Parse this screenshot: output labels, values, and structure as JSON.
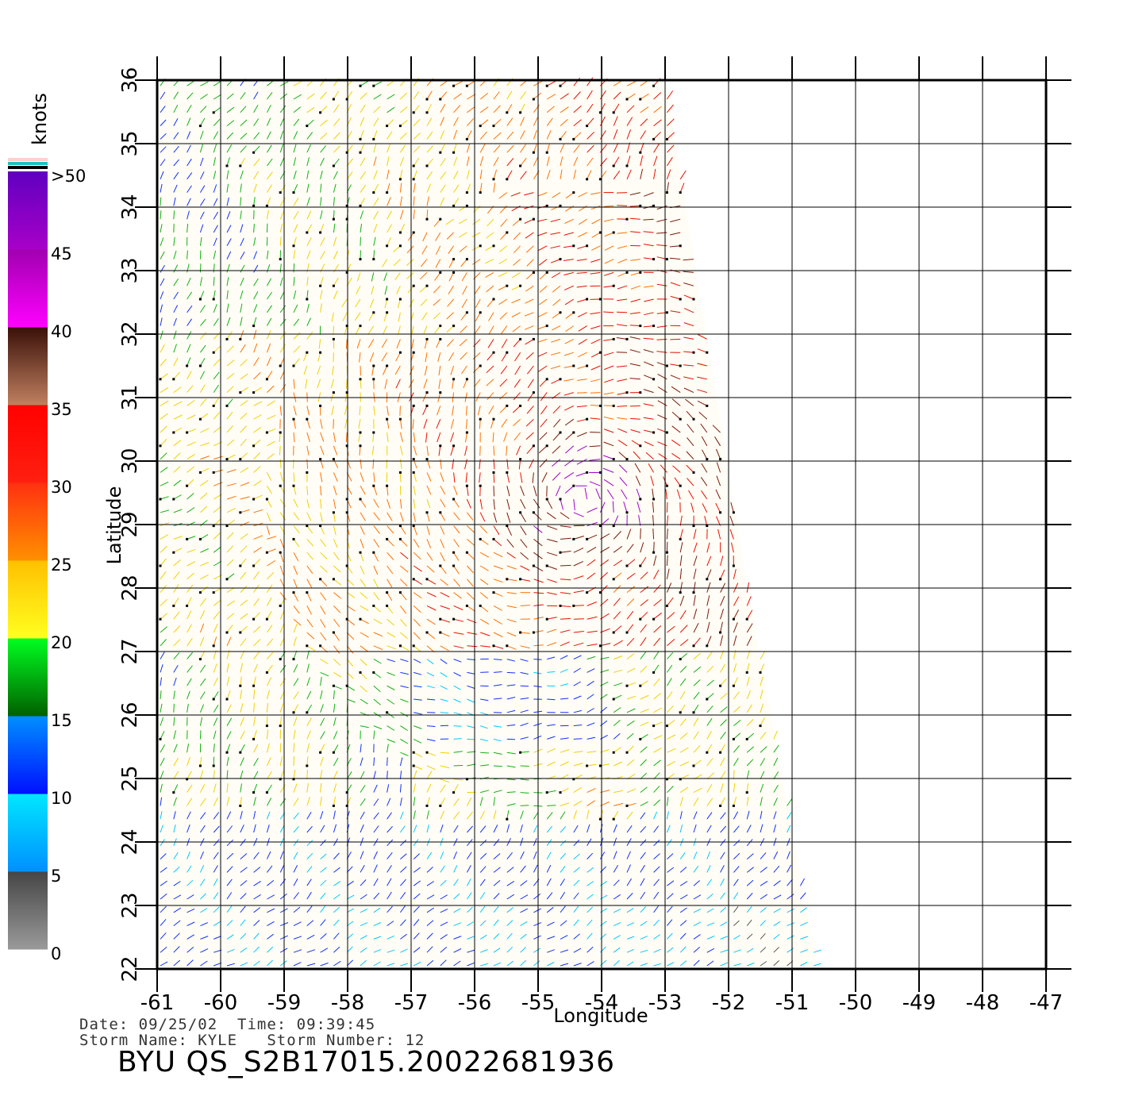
{
  "colorbar": {
    "unit_label": "knots",
    "labels": [
      ">50",
      "45",
      "40",
      "35",
      "30",
      "25",
      "20",
      "15",
      "10",
      "5",
      "0"
    ],
    "bands": [
      {
        "from": 0,
        "to": 5,
        "top": "#454545",
        "bottom": "#9a9a9a"
      },
      {
        "from": 5,
        "to": 10,
        "top": "#00e8ff",
        "bottom": "#0090ff"
      },
      {
        "from": 10,
        "to": 15,
        "top": "#0090ff",
        "bottom": "#0010ff"
      },
      {
        "from": 15,
        "to": 20,
        "top": "#00ff20",
        "bottom": "#006000"
      },
      {
        "from": 20,
        "to": 25,
        "top": "#ffc000",
        "bottom": "#ffff20"
      },
      {
        "from": 25,
        "to": 30,
        "top": "#ff3010",
        "bottom": "#ff9000"
      },
      {
        "from": 30,
        "to": 35,
        "top": "#ff0000",
        "bottom": "#ff2010"
      },
      {
        "from": 35,
        "to": 40,
        "top": "#3a1008",
        "bottom": "#c08060"
      },
      {
        "from": 40,
        "to": 45,
        "top": "#a000b0",
        "bottom": "#ff00ff"
      },
      {
        "from": 45,
        "to": 50,
        "top": "#6000c0",
        "bottom": "#a800c8"
      }
    ],
    "over_colors": [
      "#ffd0d0",
      "#20c0c0",
      "#000000"
    ]
  },
  "chart_data": {
    "type": "wind-vector-map",
    "xlabel": "Longitude",
    "ylabel": "Latitude",
    "xlim": [
      -61,
      -47
    ],
    "ylim": [
      22,
      36
    ],
    "x_ticks": [
      "-61",
      "-60",
      "-59",
      "-58",
      "-57",
      "-56",
      "-55",
      "-54",
      "-53",
      "-52",
      "-51",
      "-50",
      "-49",
      "-48",
      "-47"
    ],
    "y_ticks": [
      "22",
      "23",
      "24",
      "25",
      "26",
      "27",
      "28",
      "29",
      "30",
      "31",
      "32",
      "33",
      "34",
      "35",
      "36"
    ],
    "grid": true,
    "swath": {
      "corners_lonlat": [
        [
          -61,
          36
        ],
        [
          -53,
          36
        ],
        [
          -51.7,
          28
        ],
        [
          -50.6,
          22
        ],
        [
          -61,
          22
        ]
      ]
    },
    "storm_center_lonlat": [
      -54.3,
      29.4
    ],
    "speed_regions": [
      {
        "region": "north-west",
        "speed_knots": "10-20",
        "color": "blue/green"
      },
      {
        "region": "west",
        "speed_knots": "20-30",
        "color": "yellow/orange"
      },
      {
        "region": "central",
        "speed_knots": "30-35",
        "color": "red"
      },
      {
        "region": "core near -54 lon, 29.5 lat",
        "speed_knots": "40-45",
        "color": "purple"
      },
      {
        "region": "south band near 25-26 lat",
        "speed_knots": "15-25",
        "color": "green/yellow"
      },
      {
        "region": "south 22-24 lat",
        "speed_knots": "5-15",
        "color": "blue/cyan"
      }
    ]
  },
  "info": {
    "date_line": "Date: 09/25/02  Time: 09:39:45",
    "storm_line": "Storm Name: KYLE   Storm Number: 12",
    "title": "BYU QS_S2B17015.20022681936"
  }
}
